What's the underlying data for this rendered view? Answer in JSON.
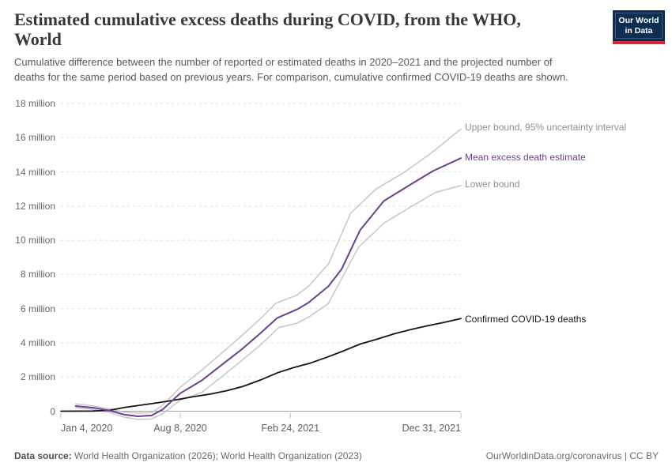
{
  "header": {
    "title_lines": [
      "Estimated cumulative excess deaths during COVID, from the WHO,",
      "World"
    ],
    "subtitle_lines": [
      "Cumulative difference between the number of reported or estimated deaths in 2020–2021 and the projected number of",
      "deaths for the same period based on previous years. For comparison, cumulative confirmed COVID-19 deaths are shown."
    ]
  },
  "logo": {
    "line1": "Our World",
    "line2": "in Data",
    "navy": "#0d2e51",
    "red": "#d8272e"
  },
  "footer": {
    "source_label": "Data source:",
    "source_text": " World Health Organization (2026); World Health Organization (2023)",
    "right_text": "OurWorldinData.org/coronavirus | CC BY"
  },
  "chart_data": {
    "type": "line",
    "title": "Estimated cumulative excess deaths during COVID, from the WHO, World",
    "values_unit": "millions of deaths",
    "x_axis": {
      "unit": "date",
      "start": "Jan 4, 2020",
      "end": "Dec 31, 2021",
      "total_days": 727,
      "ticks": [
        {
          "day": 0,
          "label": "Jan 4, 2020",
          "align": "left"
        },
        {
          "day": 217,
          "label": "Aug 8, 2020",
          "align": "center"
        },
        {
          "day": 417,
          "label": "Feb 24, 2021",
          "align": "center"
        },
        {
          "day": 727,
          "label": "Dec 31, 2021",
          "align": "right"
        }
      ]
    },
    "y_axis": {
      "min_millions": -0.6,
      "max_millions": 18,
      "grid": true,
      "ticks": [
        {
          "value": 0,
          "label": "0"
        },
        {
          "value": 2,
          "label": "2 million"
        },
        {
          "value": 4,
          "label": "4 million"
        },
        {
          "value": 6,
          "label": "6 million"
        },
        {
          "value": 8,
          "label": "8 million"
        },
        {
          "value": 10,
          "label": "10 million"
        },
        {
          "value": 12,
          "label": "12 million"
        },
        {
          "value": 14,
          "label": "14 million"
        },
        {
          "value": 16,
          "label": "16 million"
        },
        {
          "value": 18,
          "label": "18 million"
        }
      ]
    },
    "legend_position": "right-of-line-ends",
    "series": [
      {
        "name": "upper_bound",
        "label": "Upper bound, 95% uncertainty interval",
        "color": "#c6c6c6",
        "label_color": "#8f8f8f",
        "width": 1.5,
        "points_day_millions": [
          [
            27,
            0.42
          ],
          [
            60,
            0.3
          ],
          [
            90,
            0.12
          ],
          [
            115,
            -0.05
          ],
          [
            140,
            -0.12
          ],
          [
            165,
            -0.08
          ],
          [
            185,
            0.35
          ],
          [
            217,
            1.4
          ],
          [
            256,
            2.4
          ],
          [
            292,
            3.4
          ],
          [
            328,
            4.4
          ],
          [
            364,
            5.45
          ],
          [
            390,
            6.3
          ],
          [
            429,
            6.8
          ],
          [
            450,
            7.3
          ],
          [
            486,
            8.6
          ],
          [
            527,
            11.6
          ],
          [
            573,
            13.0
          ],
          [
            623,
            13.95
          ],
          [
            671,
            15.05
          ],
          [
            727,
            16.5
          ]
        ]
      },
      {
        "name": "lower_bound",
        "label": "Lower bound",
        "color": "#c6c6c6",
        "label_color": "#8f8f8f",
        "width": 1.5,
        "points_day_millions": [
          [
            27,
            0.2
          ],
          [
            60,
            0.1
          ],
          [
            90,
            -0.08
          ],
          [
            115,
            -0.35
          ],
          [
            140,
            -0.48
          ],
          [
            165,
            -0.45
          ],
          [
            185,
            -0.15
          ],
          [
            217,
            0.65
          ],
          [
            256,
            1.1
          ],
          [
            292,
            2.0
          ],
          [
            328,
            2.95
          ],
          [
            364,
            3.9
          ],
          [
            396,
            4.9
          ],
          [
            429,
            5.15
          ],
          [
            450,
            5.5
          ],
          [
            486,
            6.3
          ],
          [
            541,
            9.6
          ],
          [
            587,
            11.0
          ],
          [
            633,
            11.9
          ],
          [
            681,
            12.8
          ],
          [
            727,
            13.2
          ]
        ]
      },
      {
        "name": "confirmed_covid_deaths",
        "label": "Confirmed COVID-19 deaths",
        "color": "#141414",
        "label_color": "#151515",
        "width": 1.8,
        "points_day_millions": [
          [
            0,
            0.0
          ],
          [
            57,
            0.01
          ],
          [
            88,
            0.05
          ],
          [
            118,
            0.23
          ],
          [
            149,
            0.37
          ],
          [
            179,
            0.51
          ],
          [
            210,
            0.67
          ],
          [
            241,
            0.85
          ],
          [
            271,
            1.0
          ],
          [
            302,
            1.2
          ],
          [
            332,
            1.46
          ],
          [
            363,
            1.83
          ],
          [
            394,
            2.25
          ],
          [
            422,
            2.54
          ],
          [
            453,
            2.81
          ],
          [
            483,
            3.15
          ],
          [
            514,
            3.53
          ],
          [
            544,
            3.93
          ],
          [
            575,
            4.22
          ],
          [
            606,
            4.53
          ],
          [
            636,
            4.78
          ],
          [
            667,
            5.0
          ],
          [
            697,
            5.2
          ],
          [
            727,
            5.42
          ]
        ]
      },
      {
        "name": "mean_excess_deaths",
        "label": "Mean excess death estimate",
        "color": "#6d3e91",
        "label_color": "#6d3e91",
        "width": 2,
        "points_day_millions": [
          [
            27,
            0.3
          ],
          [
            60,
            0.2
          ],
          [
            90,
            0.03
          ],
          [
            115,
            -0.2
          ],
          [
            140,
            -0.3
          ],
          [
            165,
            -0.25
          ],
          [
            185,
            0.1
          ],
          [
            217,
            1.05
          ],
          [
            256,
            1.8
          ],
          [
            292,
            2.7
          ],
          [
            328,
            3.6
          ],
          [
            364,
            4.6
          ],
          [
            393,
            5.45
          ],
          [
            429,
            5.95
          ],
          [
            450,
            6.35
          ],
          [
            486,
            7.3
          ],
          [
            510,
            8.3
          ],
          [
            544,
            10.6
          ],
          [
            587,
            12.3
          ],
          [
            630,
            13.15
          ],
          [
            676,
            14.05
          ],
          [
            727,
            14.8
          ]
        ]
      }
    ],
    "grid_color": "#dcdcdc",
    "axis_line_color": "#a3a3a3"
  }
}
